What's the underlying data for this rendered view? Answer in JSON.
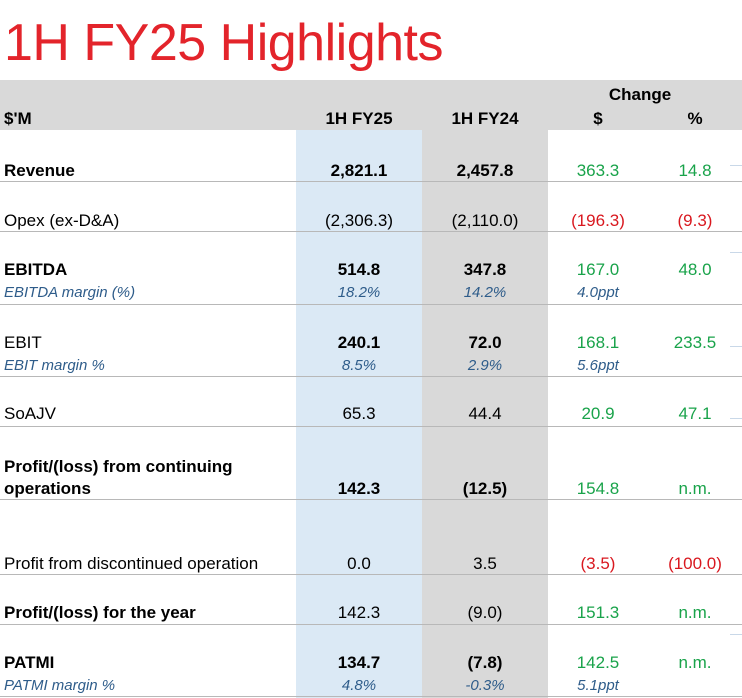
{
  "title": "1H FY25 Highlights",
  "header": {
    "unit": "$'M",
    "col_fy25": "1H FY25",
    "col_fy24": "1H FY24",
    "change": "Change",
    "change_dollar": "$",
    "change_pct": "%"
  },
  "rows": {
    "revenue": {
      "label": "Revenue",
      "fy25": "2,821.1",
      "fy24": "2,457.8",
      "chg": "363.3",
      "pct": "14.8"
    },
    "opex": {
      "label": "Opex (ex-D&A)",
      "fy25": "(2,306.3)",
      "fy24": "(2,110.0)",
      "chg": "(196.3)",
      "pct": "(9.3)"
    },
    "ebitda": {
      "label": "EBITDA",
      "fy25": "514.8",
      "fy24": "347.8",
      "chg": "167.0",
      "pct": "48.0",
      "sub_label": "EBITDA margin (%)",
      "sub_fy25": "18.2%",
      "sub_fy24": "14.2%",
      "sub_chg": "4.0ppt"
    },
    "ebit": {
      "label": "EBIT",
      "fy25": "240.1",
      "fy24": "72.0",
      "chg": "168.1",
      "pct": "233.5",
      "sub_label": "EBIT margin %",
      "sub_fy25": "8.5%",
      "sub_fy24": "2.9%",
      "sub_chg": "5.6ppt"
    },
    "soajv": {
      "label": "SoAJV",
      "fy25": "65.3",
      "fy24": "44.4",
      "chg": "20.9",
      "pct": "47.1"
    },
    "profit_cont": {
      "label_line1": "Profit/(loss) from continuing",
      "label_line2": "operations",
      "fy25": "142.3",
      "fy24": "(12.5)",
      "chg": "154.8",
      "pct": "n.m."
    },
    "profit_disc": {
      "label": "Profit from discontinued operation",
      "fy25": "0.0",
      "fy24": "3.5",
      "chg": "(3.5)",
      "pct": "(100.0)"
    },
    "profit_year": {
      "label": "Profit/(loss) for the year",
      "fy25": "142.3",
      "fy24": "(9.0)",
      "chg": "151.3",
      "pct": "n.m."
    },
    "patmi": {
      "label": "PATMI",
      "fy25": "134.7",
      "fy24": "(7.8)",
      "chg": "142.5",
      "pct": "n.m.",
      "sub_label": "PATMI margin %",
      "sub_fy25": "4.8%",
      "sub_fy24": "-0.3%",
      "sub_chg": "5.1ppt"
    }
  },
  "colors": {
    "title": "#e3242b",
    "positive": "#19a34a",
    "negative": "#d9181f",
    "fy25_bg": "#dbe9f5",
    "fy24_bg": "#d9d9d9"
  }
}
